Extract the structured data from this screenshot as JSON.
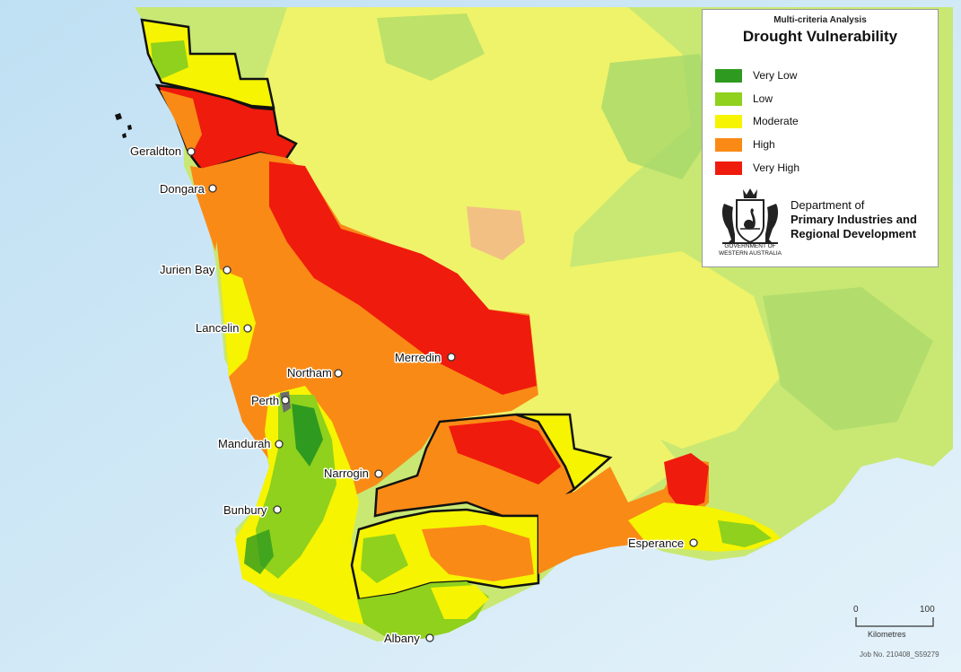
{
  "legend": {
    "subtitle": "Multi-criteria Analysis",
    "title": "Drought Vulnerability",
    "items": [
      {
        "label": "Very Low",
        "color": "#2e9a1f"
      },
      {
        "label": "Low",
        "color": "#8fd11c"
      },
      {
        "label": "Moderate",
        "color": "#f6f400"
      },
      {
        "label": "High",
        "color": "#fa8a16"
      },
      {
        "label": "Very High",
        "color": "#ef1b0c"
      }
    ]
  },
  "department": {
    "line1": "Department of",
    "line2": "Primary Industries and",
    "line3": "Regional Development",
    "gov_line1": "GOVERNMENT OF",
    "gov_line2": "WESTERN AUSTRALIA",
    "crest_icon": "coat-of-arms-icon"
  },
  "towns": [
    {
      "name": "Geraldton"
    },
    {
      "name": "Dongara"
    },
    {
      "name": "Jurien Bay"
    },
    {
      "name": "Lancelin"
    },
    {
      "name": "Northam"
    },
    {
      "name": "Merredin"
    },
    {
      "name": "Perth"
    },
    {
      "name": "Mandurah"
    },
    {
      "name": "Narrogin"
    },
    {
      "name": "Bunbury"
    },
    {
      "name": "Esperance"
    },
    {
      "name": "Albany"
    }
  ],
  "scale_bar": {
    "start": "0",
    "end": "100",
    "unit": "Kilometres"
  },
  "job_number": "Job No. 210408_S59279",
  "colors": {
    "ocean": "#c9e6f5",
    "inland_light": "#c8e873",
    "inland_yellow": "#eef36a",
    "border": "#111111"
  }
}
